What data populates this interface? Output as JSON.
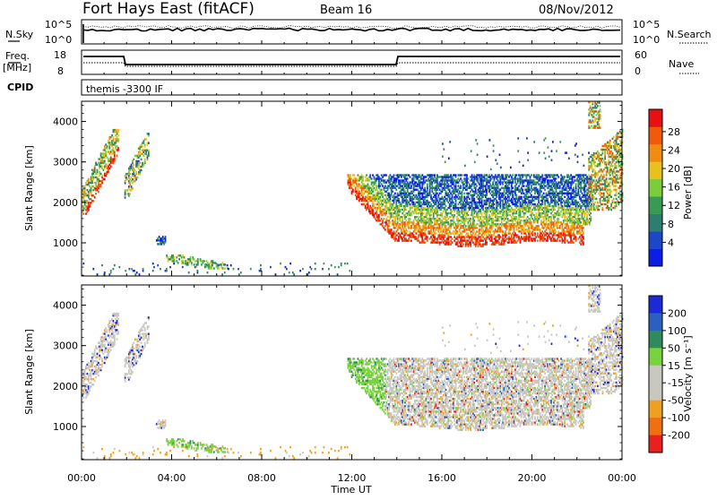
{
  "header": {
    "station": "Fort Hays East (fitACF)",
    "beam": "Beam 16",
    "date": "08/Nov/2012"
  },
  "top_panels": {
    "nsky_label": "N.Sky",
    "nsky_ticks": [
      "10^5",
      "10^0"
    ],
    "nsearch_label": "N.Search",
    "nsearch_ticks": [
      "10^5",
      "10^0"
    ],
    "freq_label_1": "Freq.",
    "freq_label_2": "[MHz]",
    "freq_ticks": [
      "18",
      "8"
    ],
    "nave_label": "Nave",
    "nave_ticks": [
      "60",
      "0"
    ],
    "cpid_label": "CPID",
    "cpid_text": "themis -3300 IF"
  },
  "chart_data": [
    {
      "type": "heatmap",
      "title": "",
      "xlabel": "",
      "ylabel": "Slant Range [km]",
      "ylim": [
        180,
        4500
      ],
      "yticks": [
        "1000",
        "2000",
        "3000",
        "4000"
      ],
      "colorbar_label": "Power [dB]",
      "colorbar_ticks": [
        "4",
        "8",
        "12",
        "16",
        "20",
        "24",
        "28"
      ],
      "colors": [
        "#0a1ee6",
        "#1e46c8",
        "#2e7d6e",
        "#3a9a55",
        "#7ccd3a",
        "#e8c11e",
        "#f08c10",
        "#f05a0a",
        "#e81010"
      ]
    },
    {
      "type": "heatmap",
      "title": "",
      "xlabel": "Time UT",
      "ylabel": "Slant Range [km]",
      "ylim": [
        180,
        4500
      ],
      "yticks": [
        "1000",
        "2000",
        "3000",
        "4000"
      ],
      "xticks": [
        "00:00",
        "04:00",
        "08:00",
        "12:00",
        "16:00",
        "20:00",
        "00:00"
      ],
      "colorbar_label": "Velocity [m s⁻¹]",
      "colorbar_ticks": [
        "200",
        "100",
        "50",
        "15",
        "-15",
        "-50",
        "-100",
        "-200"
      ],
      "colors": [
        "#1c2ad6",
        "#2c5fc0",
        "#2f8b5b",
        "#78d33c",
        "#c8c8c0",
        "#c8c8c0",
        "#f0a020",
        "#f07010",
        "#e82020"
      ]
    }
  ]
}
